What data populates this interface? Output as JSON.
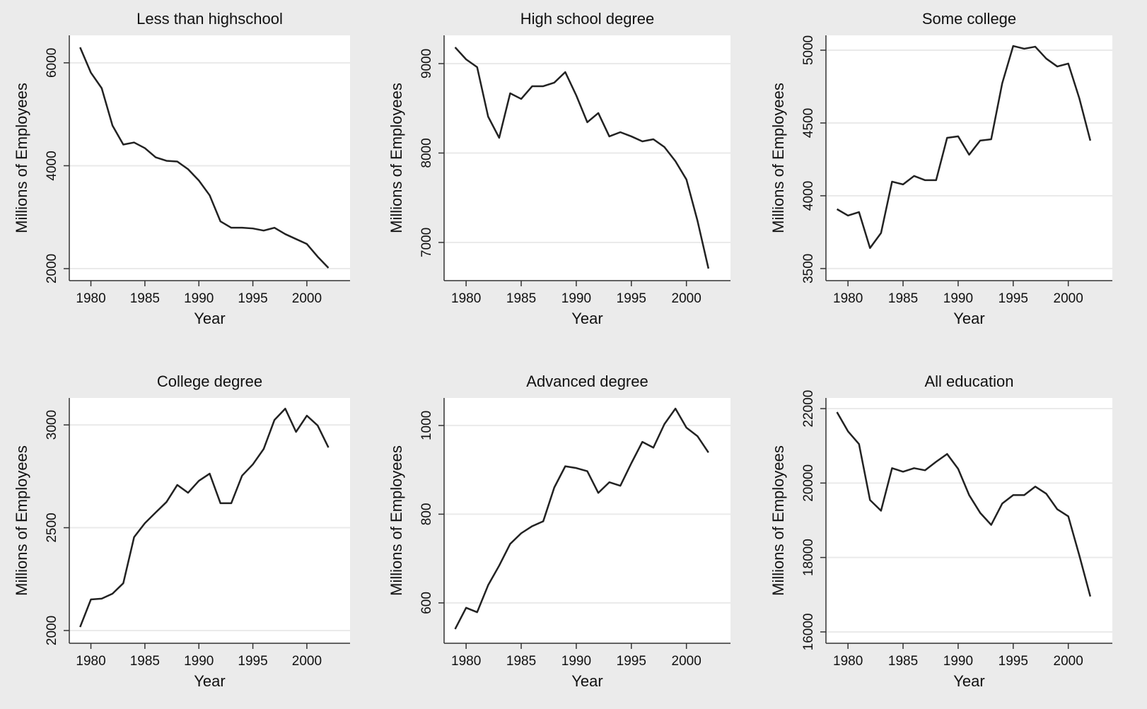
{
  "chart_data": [
    {
      "type": "line",
      "title": "Less than highschool",
      "xlabel": "Year",
      "ylabel": "Millions of Employees",
      "color": "#222222",
      "grid": true,
      "x": [
        1979,
        1980,
        1981,
        1982,
        1983,
        1984,
        1985,
        1986,
        1987,
        1988,
        1989,
        1990,
        1991,
        1992,
        1993,
        1994,
        1995,
        1996,
        1997,
        1998,
        1999,
        2000,
        2001,
        2002
      ],
      "values": [
        6300,
        5808,
        5507,
        4781,
        4411,
        4452,
        4342,
        4164,
        4096,
        4082,
        3932,
        3712,
        3425,
        2918,
        2795,
        2795,
        2781,
        2740,
        2795,
        2671,
        2575,
        2479,
        2233,
        2014
      ],
      "xlim": [
        1978,
        2004
      ],
      "xticks": [
        1980,
        1985,
        1990,
        1995,
        2000
      ],
      "ylim": [
        1767,
        6534
      ],
      "yticks": [
        2000,
        4000,
        6000
      ]
    },
    {
      "type": "line",
      "title": "High school degree",
      "xlabel": "Year",
      "ylabel": "Millions of Employees",
      "color": "#222222",
      "grid": true,
      "x": [
        1979,
        1980,
        1981,
        1982,
        1983,
        1984,
        1985,
        1986,
        1987,
        1988,
        1989,
        1990,
        1991,
        1992,
        1993,
        1994,
        1995,
        1996,
        1997,
        1998,
        1999,
        2000,
        2001,
        2002
      ],
      "values": [
        9182,
        9047,
        8960,
        8407,
        8170,
        8668,
        8605,
        8747,
        8747,
        8787,
        8905,
        8644,
        8344,
        8447,
        8186,
        8233,
        8186,
        8130,
        8154,
        8067,
        7909,
        7704,
        7245,
        6708
      ],
      "xlim": [
        1978,
        2004
      ],
      "xticks": [
        1980,
        1985,
        1990,
        1995,
        2000
      ],
      "ylim": [
        6573,
        9316
      ],
      "yticks": [
        7000,
        8000,
        9000
      ]
    },
    {
      "type": "line",
      "title": "Some college",
      "xlabel": "Year",
      "ylabel": "Millions of Employees",
      "color": "#222222",
      "grid": true,
      "x": [
        1979,
        1980,
        1981,
        1982,
        1983,
        1984,
        1985,
        1986,
        1987,
        1988,
        1989,
        1990,
        1991,
        1992,
        1993,
        1994,
        1995,
        1996,
        1997,
        1998,
        1999,
        2000,
        2001,
        2002
      ],
      "values": [
        3908,
        3864,
        3888,
        3641,
        3744,
        4097,
        4078,
        4136,
        4107,
        4107,
        4398,
        4408,
        4282,
        4379,
        4388,
        4772,
        5029,
        5010,
        5024,
        4942,
        4888,
        4908,
        4670,
        4379
      ],
      "xlim": [
        1978,
        2004
      ],
      "xticks": [
        1980,
        1985,
        1990,
        1995,
        2000
      ],
      "ylim": [
        3417,
        5102
      ],
      "yticks": [
        3500,
        4000,
        4500,
        5000
      ]
    },
    {
      "type": "line",
      "title": "College degree",
      "xlabel": "Year",
      "ylabel": "Millions of Employees",
      "color": "#222222",
      "grid": true,
      "x": [
        1979,
        1980,
        1981,
        1982,
        1983,
        1984,
        1985,
        1986,
        1987,
        1988,
        1989,
        1990,
        1991,
        1992,
        1993,
        1994,
        1995,
        1996,
        1997,
        1998,
        1999,
        2000,
        2001,
        2002
      ],
      "values": [
        2017,
        2151,
        2155,
        2179,
        2230,
        2454,
        2522,
        2574,
        2625,
        2708,
        2670,
        2728,
        2763,
        2619,
        2619,
        2753,
        2808,
        2883,
        3024,
        3079,
        2966,
        3045,
        2997,
        2890
      ],
      "xlim": [
        1978,
        2004
      ],
      "xticks": [
        1980,
        1985,
        1990,
        1995,
        2000
      ],
      "ylim": [
        1938,
        3131
      ],
      "yticks": [
        2000,
        2500,
        3000
      ]
    },
    {
      "type": "line",
      "title": "Advanced degree",
      "xlabel": "Year",
      "ylabel": "Millions of Employees",
      "color": "#222222",
      "grid": true,
      "x": [
        1979,
        1980,
        1981,
        1982,
        1983,
        1984,
        1985,
        1986,
        1987,
        1988,
        1989,
        1990,
        1991,
        1992,
        1993,
        1994,
        1995,
        1996,
        1997,
        1998,
        1999,
        2000,
        2001,
        2002
      ],
      "values": [
        541,
        589,
        579,
        640,
        684,
        733,
        757,
        773,
        784,
        860,
        908,
        904,
        897,
        848,
        872,
        864,
        915,
        963,
        950,
        1003,
        1038,
        995,
        976,
        939
      ],
      "xlim": [
        1978,
        2004
      ],
      "xticks": [
        1980,
        1985,
        1990,
        1995,
        2000
      ],
      "ylim": [
        509,
        1062
      ],
      "yticks": [
        600,
        800,
        1000
      ]
    },
    {
      "type": "line",
      "title": "All education",
      "xlabel": "Year",
      "ylabel": "Millions of Employees",
      "color": "#222222",
      "grid": true,
      "x": [
        1979,
        1980,
        1981,
        1982,
        1983,
        1984,
        1985,
        1986,
        1987,
        1988,
        1989,
        1990,
        1991,
        1992,
        1993,
        1994,
        1995,
        1996,
        1997,
        1998,
        1999,
        2000,
        2001,
        2002
      ],
      "values": [
        21905,
        21390,
        21048,
        19543,
        19257,
        20400,
        20305,
        20400,
        20343,
        20571,
        20781,
        20381,
        19676,
        19200,
        18876,
        19448,
        19676,
        19676,
        19905,
        19714,
        19295,
        19105,
        18057,
        16952
      ],
      "xlim": [
        1978,
        2004
      ],
      "xticks": [
        1980,
        1985,
        1990,
        1995,
        2000
      ],
      "ylim": [
        15695,
        22286
      ],
      "yticks": [
        16000,
        18000,
        20000,
        22000
      ]
    }
  ]
}
